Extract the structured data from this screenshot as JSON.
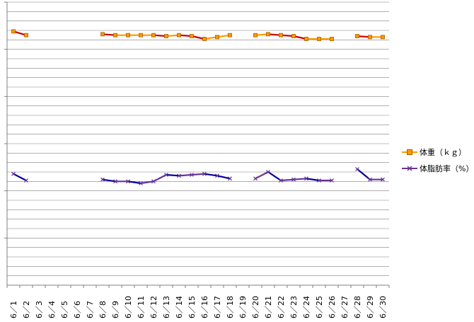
{
  "chart_data": {
    "type": "line",
    "categories": [
      "6／1",
      "6／2",
      "6／3",
      "6／4",
      "6／5",
      "6／6",
      "6／7",
      "6／8",
      "6／9",
      "6／10",
      "6／11",
      "6／12",
      "6／13",
      "6／14",
      "6／15",
      "6／16",
      "6／17",
      "6／18",
      "6／19",
      "6／20",
      "6／21",
      "6／22",
      "6／23",
      "6／24",
      "6／25",
      "6／26",
      "6／27",
      "6／28",
      "6／29",
      "6／30"
    ],
    "ylim": [
      0,
      30
    ],
    "grid": true,
    "legend_position": "right",
    "series": [
      {
        "name": "体重（ｋｇ）",
        "color": "#ff9900",
        "decline_color": "#cc0000",
        "marker": "square",
        "values": [
          26.9,
          26.5,
          null,
          null,
          null,
          null,
          null,
          26.6,
          26.5,
          26.5,
          26.5,
          26.5,
          26.4,
          26.5,
          26.4,
          26.1,
          26.3,
          26.5,
          null,
          26.5,
          26.6,
          26.5,
          26.4,
          26.1,
          26.1,
          26.1,
          null,
          26.4,
          26.3,
          26.3
        ]
      },
      {
        "name": "体脂肪率（%）",
        "color": "#663399",
        "decline_color": "#000099",
        "marker": "x",
        "values": [
          11.8,
          11.1,
          null,
          null,
          null,
          null,
          null,
          11.2,
          11.0,
          11.0,
          10.8,
          11.0,
          11.7,
          11.6,
          11.7,
          11.8,
          11.6,
          11.3,
          null,
          11.3,
          12.0,
          11.1,
          11.2,
          11.3,
          11.1,
          11.1,
          null,
          12.3,
          11.2,
          11.2
        ]
      }
    ]
  }
}
